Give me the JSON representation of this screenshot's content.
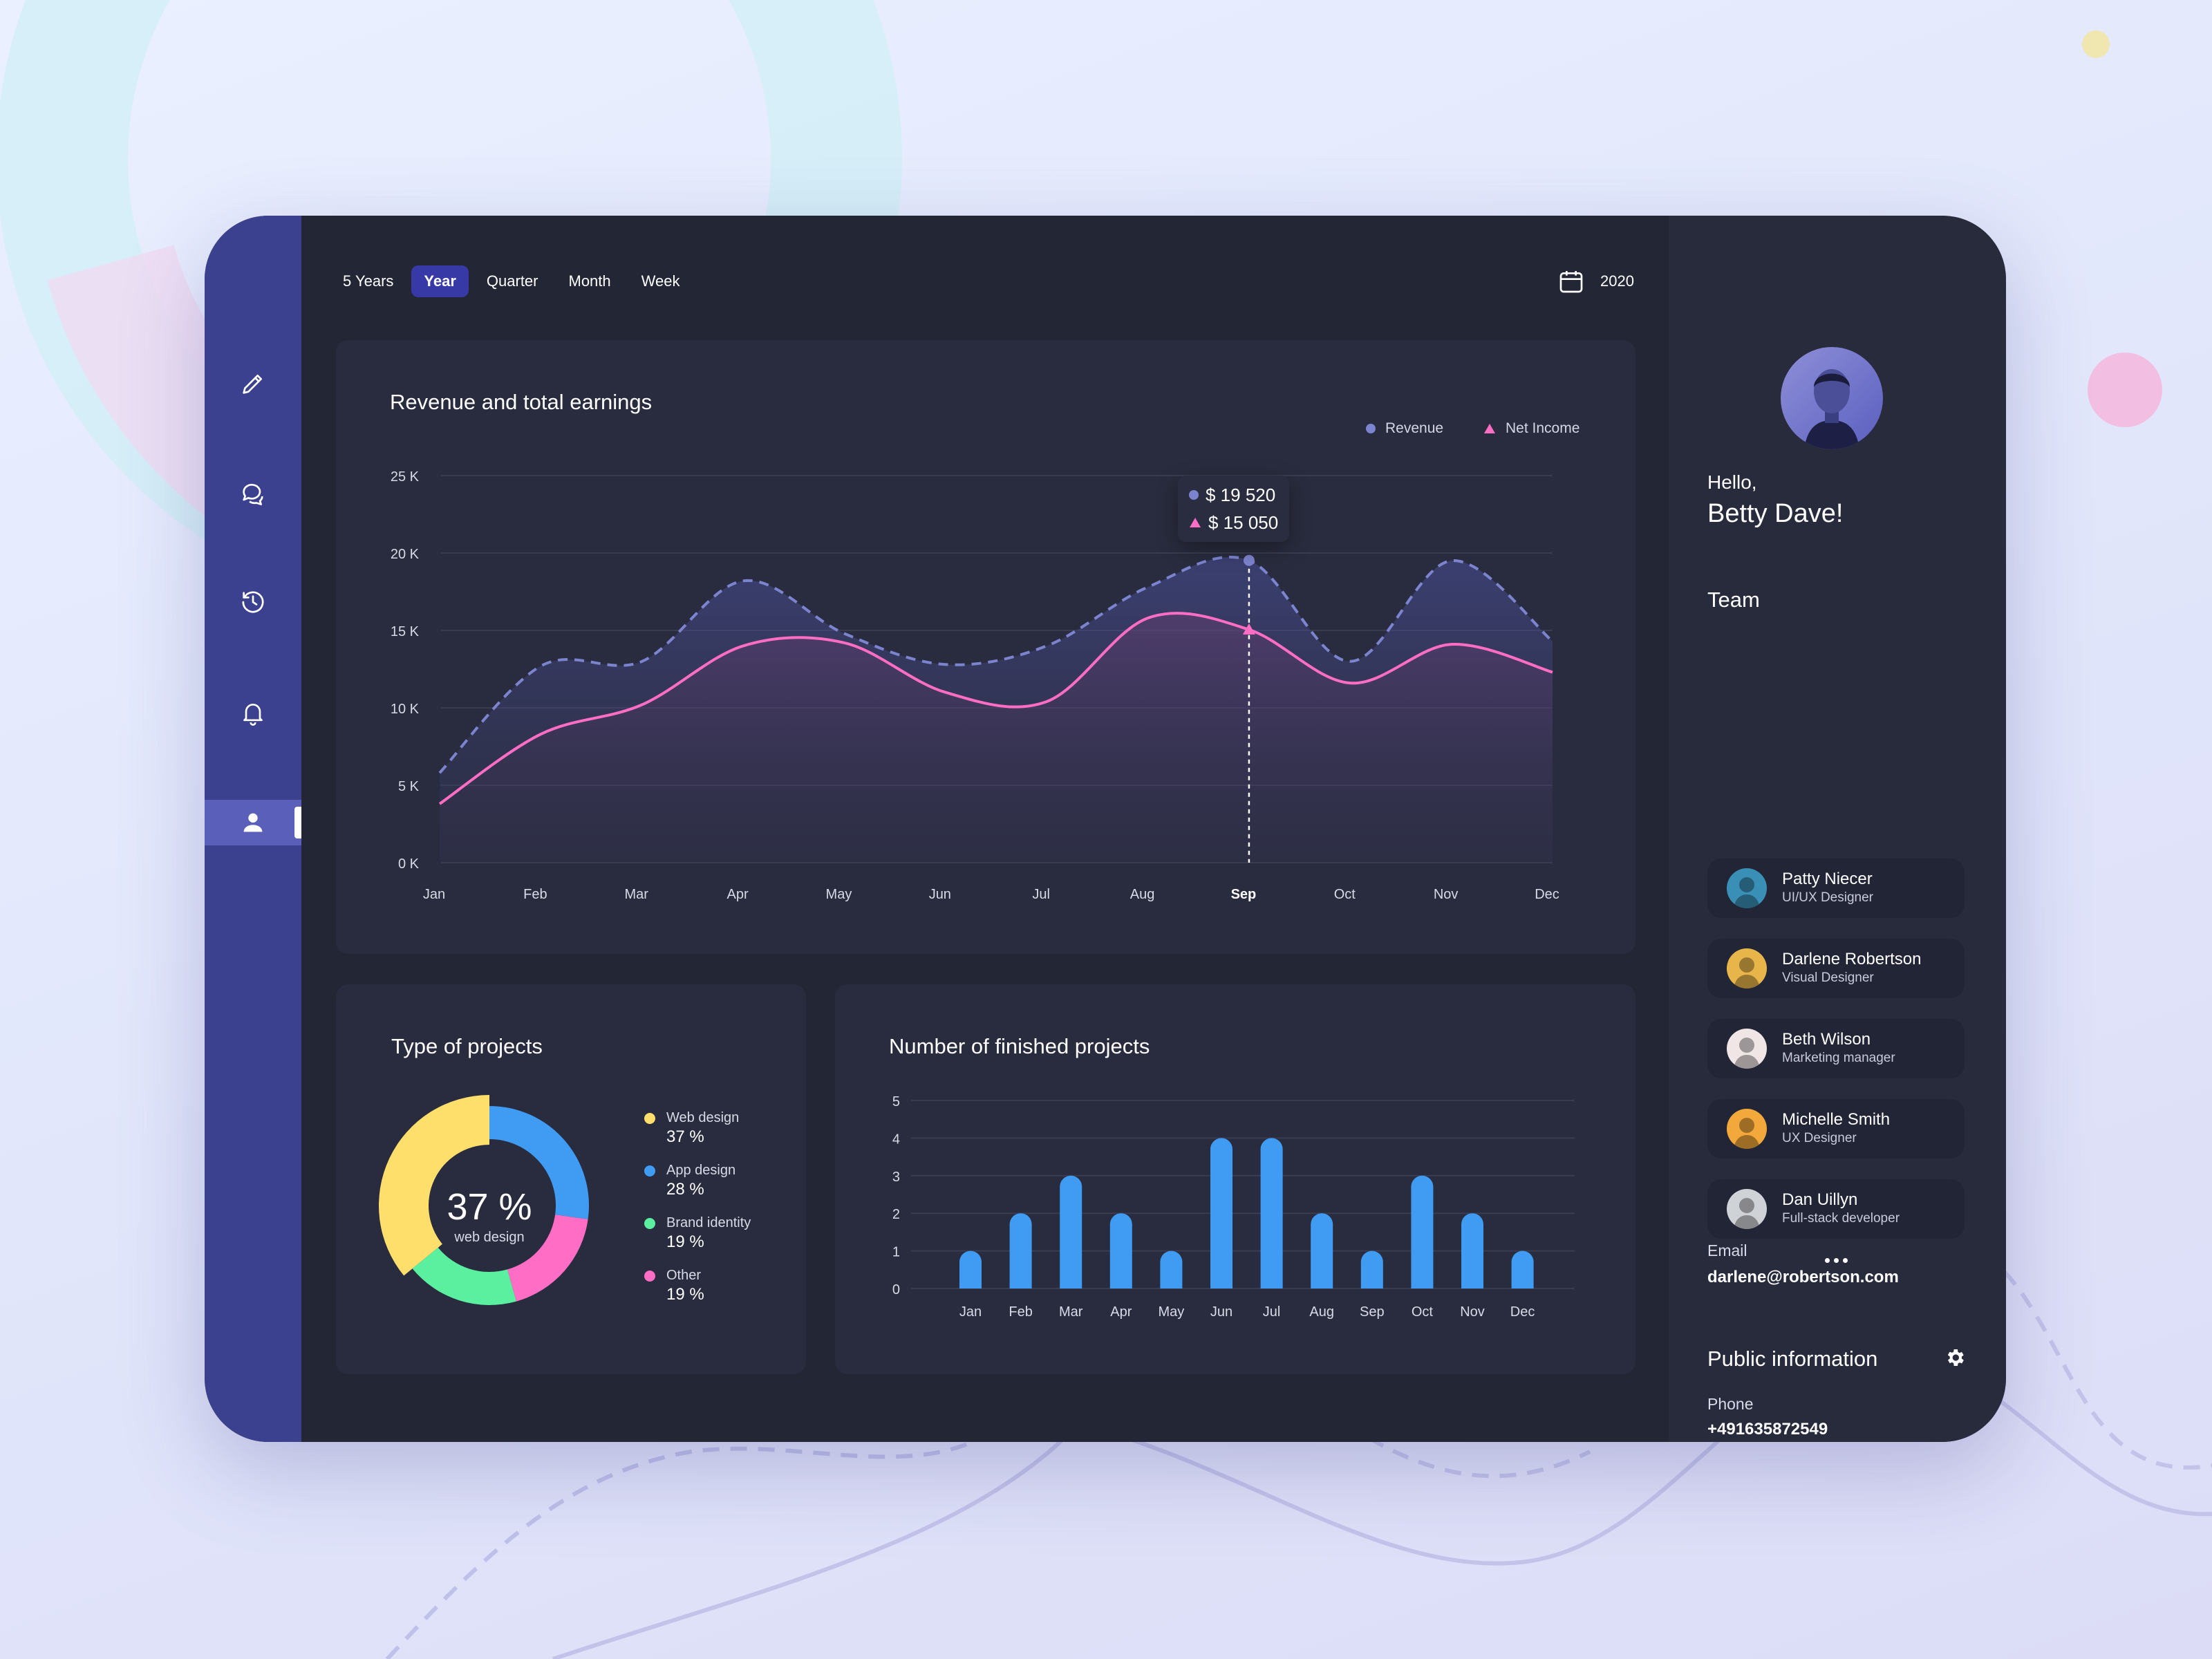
{
  "colors": {
    "sidebar": "#3b418e",
    "panel": "#232635",
    "card": "#292c3e",
    "accent": "#3639a6",
    "revenue": "#7d84cf",
    "net_income": "#ff6ec4",
    "bar": "#3f9cf2",
    "web_design": "#ffdf6b",
    "app_design": "#3f9cf2",
    "brand_identity": "#5af0a0",
    "other": "#ff6ec4"
  },
  "sidebar": {
    "items": [
      {
        "icon": "pencil-icon"
      },
      {
        "icon": "chat-icon"
      },
      {
        "icon": "history-icon"
      },
      {
        "icon": "bell-icon"
      },
      {
        "icon": "user-icon",
        "active": true
      }
    ]
  },
  "period_tabs": [
    {
      "label": "5 Years",
      "active": false
    },
    {
      "label": "Year",
      "active": true
    },
    {
      "label": "Quarter",
      "active": false
    },
    {
      "label": "Month",
      "active": false
    },
    {
      "label": "Week",
      "active": false
    }
  ],
  "year_selector": {
    "icon": "calendar-icon",
    "value": "2020"
  },
  "revenue_card": {
    "title": "Revenue and total earnings",
    "legend": {
      "revenue": "Revenue",
      "net_income": "Net Income"
    },
    "tooltip": {
      "revenue": "$ 19 520",
      "net_income": "$ 15 050"
    },
    "highlight_month": "Sep"
  },
  "projects_type_card": {
    "title": "Type of projects",
    "center_value": "37 %",
    "center_label": "web design",
    "items": [
      {
        "label": "Web design",
        "value": "37 %"
      },
      {
        "label": "App design",
        "value": "28 %"
      },
      {
        "label": "Brand identity",
        "value": "19 %"
      },
      {
        "label": "Other",
        "value": "19 %"
      }
    ]
  },
  "finished_card": {
    "title": "Number of finished projects"
  },
  "chart_data": [
    {
      "type": "area",
      "title": "Revenue and total earnings",
      "categories": [
        "Jan",
        "Feb",
        "Mar",
        "Apr",
        "May",
        "Jun",
        "Jul",
        "Aug",
        "Sep",
        "Oct",
        "Nov",
        "Dec"
      ],
      "y_ticks": [
        "25 K",
        "20 K",
        "15 K",
        "10 K",
        "5 K",
        "0 K"
      ],
      "ylim": [
        0,
        25000
      ],
      "grid": true,
      "legend_position": "top-right",
      "series": [
        {
          "name": "Revenue",
          "style": "dashed",
          "values": [
            5800,
            12700,
            13000,
            18200,
            14800,
            12800,
            14000,
            17800,
            19520,
            13000,
            19500,
            14300
          ]
        },
        {
          "name": "Net Income",
          "style": "solid",
          "values": [
            3800,
            8300,
            10200,
            14000,
            14200,
            11000,
            10400,
            15800,
            15050,
            11600,
            14100,
            12300
          ]
        }
      ]
    },
    {
      "type": "pie",
      "title": "Type of projects",
      "categories": [
        "Web design",
        "App design",
        "Brand identity",
        "Other"
      ],
      "values": [
        37,
        28,
        19,
        19
      ]
    },
    {
      "type": "bar",
      "title": "Number of finished projects",
      "categories": [
        "Jan",
        "Feb",
        "Mar",
        "Apr",
        "May",
        "Jun",
        "Jul",
        "Aug",
        "Sep",
        "Oct",
        "Nov",
        "Dec"
      ],
      "values": [
        1,
        2,
        3,
        2,
        1,
        4,
        4,
        2,
        1,
        3,
        2,
        1
      ],
      "ylim": [
        0,
        5
      ],
      "y_ticks": [
        "5",
        "4",
        "3",
        "2",
        "1",
        "0"
      ],
      "grid": true
    }
  ],
  "profile": {
    "greeting": "Hello,",
    "name": "Betty Dave!"
  },
  "team": {
    "title": "Team",
    "members": [
      {
        "name": "Patty Niecer",
        "role": "UI/UX Designer",
        "avatar": "#3a8fb7"
      },
      {
        "name": "Darlene Robertson",
        "role": "Visual Designer",
        "avatar": "#e8b54a"
      },
      {
        "name": "Beth Wilson",
        "role": "Marketing manager",
        "avatar": "#f0e6e6"
      },
      {
        "name": "Michelle Smith",
        "role": "UX Designer",
        "avatar": "#f2a83a"
      },
      {
        "name": "Dan Uillyn",
        "role": "Full-stack developer",
        "avatar": "#cfd2d6"
      }
    ],
    "more_icon": "more-dots-icon"
  },
  "public_info": {
    "title": "Public information",
    "settings_icon": "gear-icon",
    "phone_label": "Phone",
    "phone": "+491635872549",
    "email_label": "Email",
    "email": "darlene@robertson.com"
  }
}
